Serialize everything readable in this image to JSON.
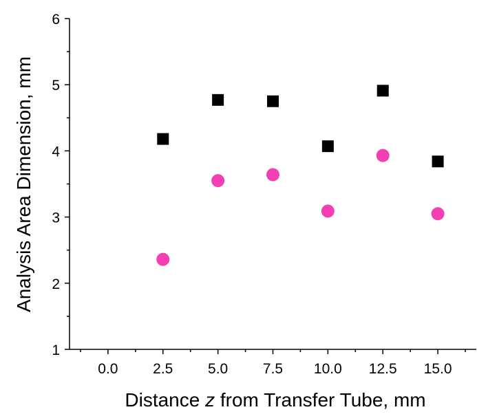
{
  "chart_data": {
    "type": "scatter",
    "title": "",
    "xlabel_parts": [
      "Distance ",
      "z",
      " from Transfer Tube, mm"
    ],
    "ylabel": "Analysis Area Dimension, mm",
    "xlim": [
      -1.75,
      16.75
    ],
    "ylim": [
      1,
      6
    ],
    "xticks": [
      0.0,
      2.5,
      5.0,
      7.5,
      10.0,
      12.5,
      15.0
    ],
    "xtick_labels": [
      "0.0",
      "2.5",
      "5.0",
      "7.5",
      "10.0",
      "12.5",
      "15.0"
    ],
    "yticks": [
      1,
      2,
      3,
      4,
      5,
      6
    ],
    "ytick_labels": [
      "1",
      "2",
      "3",
      "4",
      "5",
      "6"
    ],
    "grid": false,
    "legend": "none",
    "series": [
      {
        "marker": "square",
        "color": "#000000",
        "x": [
          2.5,
          5.0,
          7.5,
          10.0,
          12.5,
          15.0
        ],
        "y": [
          4.18,
          4.77,
          4.75,
          4.07,
          4.91,
          3.84
        ]
      },
      {
        "marker": "circle",
        "color": "#f33fb0",
        "x": [
          2.5,
          5.0,
          7.5,
          10.0,
          12.5,
          15.0
        ],
        "y": [
          2.36,
          3.55,
          3.64,
          3.09,
          3.93,
          3.05
        ]
      }
    ]
  }
}
